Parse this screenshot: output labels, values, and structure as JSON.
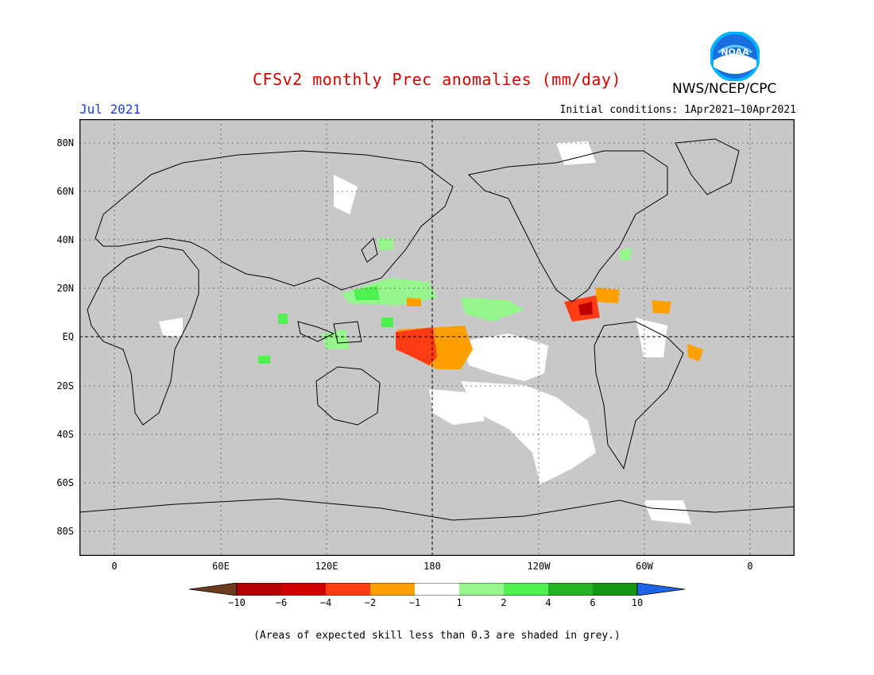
{
  "header": {
    "title": "CFSv2 monthly Prec anomalies (mm/day)",
    "month": "Jul 2021",
    "initial_conditions": "Initial conditions: 1Apr2021–10Apr2021",
    "agency": "NWS/NCEP/CPC",
    "logo_text": "NOAA"
  },
  "map": {
    "lat_labels": [
      "80N",
      "60N",
      "40N",
      "20N",
      "EQ",
      "20S",
      "40S",
      "60S",
      "80S"
    ],
    "lon_labels": [
      "0",
      "60E",
      "120E",
      "180",
      "120W",
      "60W",
      "0"
    ],
    "colors": {
      "grey": "#c8c8c8",
      "light_green": "#96f58c",
      "green": "#50f050",
      "orange": "#ffa000",
      "red_orange": "#ff3c14",
      "dark_red": "#c00000",
      "white": "#ffffff"
    }
  },
  "colorbar": {
    "labels": [
      "−10",
      "−6",
      "−4",
      "−2",
      "−1",
      "1",
      "2",
      "4",
      "6",
      "10"
    ],
    "colors": [
      "#6e3c1e",
      "#b40000",
      "#d20000",
      "#ff3c14",
      "#ffa000",
      "#ffffff",
      "#96f58c",
      "#50f050",
      "#23b423",
      "#149614",
      "#1e64e6"
    ]
  },
  "footer": {
    "note": "(Areas of expected skill less than 0.3 are shaded in grey.)"
  }
}
